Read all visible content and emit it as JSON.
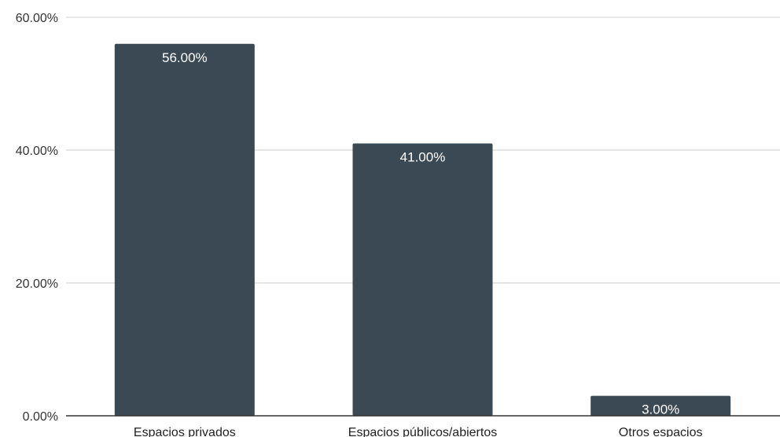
{
  "chart_data": {
    "type": "bar",
    "categories": [
      "Espacios privados",
      "Espacios públicos/abiertos",
      "Otros espacios"
    ],
    "values": [
      56.0,
      41.0,
      3.0
    ],
    "data_labels": [
      "56.00%",
      "41.00%",
      "3.00%"
    ],
    "y_ticks": [
      {
        "value": 0,
        "label": "0.00%"
      },
      {
        "value": 20,
        "label": "20.00%"
      },
      {
        "value": 40,
        "label": "40.00%"
      },
      {
        "value": 60,
        "label": "60.00%"
      }
    ],
    "ylim": [
      0,
      60
    ],
    "grid": true,
    "legend": "none",
    "colors": {
      "bar": "#3b4954",
      "gridline": "#cccccc",
      "axis": "#333333",
      "data_label": "#ffffff"
    }
  }
}
